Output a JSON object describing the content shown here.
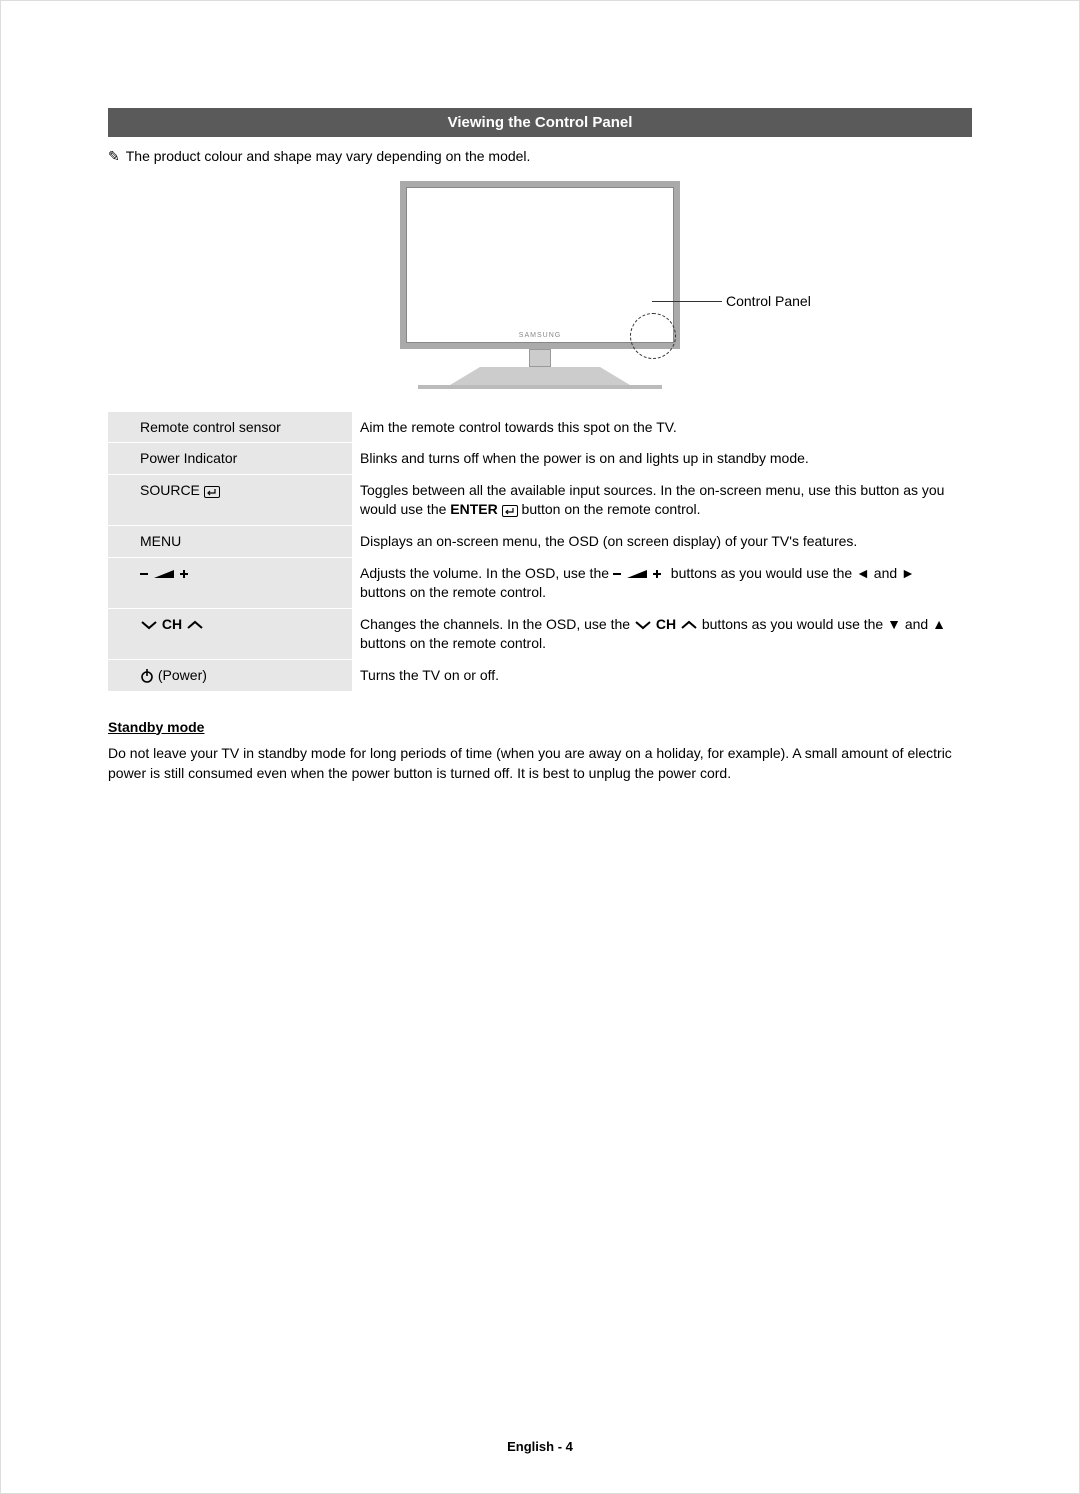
{
  "title_bar": "Viewing the Control Panel",
  "note": {
    "icon": "✎",
    "text": "The product colour and shape may vary depending on the model."
  },
  "diagram": {
    "callout_label": "Control Panel",
    "logo": "SAMSUNG"
  },
  "table": {
    "rows": [
      {
        "label": "Remote control sensor",
        "label_type": "text",
        "desc": "Aim the remote control towards this spot on the TV."
      },
      {
        "label": "Power Indicator",
        "label_type": "text",
        "desc": "Blinks and turns off when the power is on and lights up in standby mode."
      },
      {
        "label": "SOURCE",
        "label_icon": "↵",
        "label_type": "source",
        "desc_pre": "Toggles between all the available input sources. In the on-screen menu, use this button as you would use the ",
        "desc_bold": "ENTER",
        "desc_icon": "↵",
        "desc_post": " button on the remote control."
      },
      {
        "label": "MENU",
        "label_type": "text",
        "desc": "Displays an on-screen menu, the OSD (on screen display) of your TV's features."
      },
      {
        "label_type": "volume",
        "desc_pre": "Adjusts the volume. In the OSD, use the ",
        "desc_mid": " buttons as you would use the ◄ and ► buttons on the remote control."
      },
      {
        "label_type": "channel",
        "label_center": "CH",
        "desc_pre": "Changes the channels. In the OSD, use the ",
        "desc_bold_center": "CH",
        "desc_post": " buttons as you would use the ▼ and ▲ buttons on the remote control."
      },
      {
        "label_type": "power",
        "label_text": "(Power)",
        "desc": "Turns the TV on or off."
      }
    ]
  },
  "standby": {
    "heading": "Standby mode",
    "text": "Do not leave your TV in standby mode for long periods of time (when you are away on a holiday, for example). A small amount of electric power is still consumed even when the power button is turned off. It is best to unplug the power cord."
  },
  "footer": {
    "language": "English",
    "page": "4"
  },
  "colors": {
    "title_bg": "#5a5a5a",
    "title_fg": "#ffffff",
    "row_label_bg": "#e7e7e7",
    "text": "#000000"
  }
}
